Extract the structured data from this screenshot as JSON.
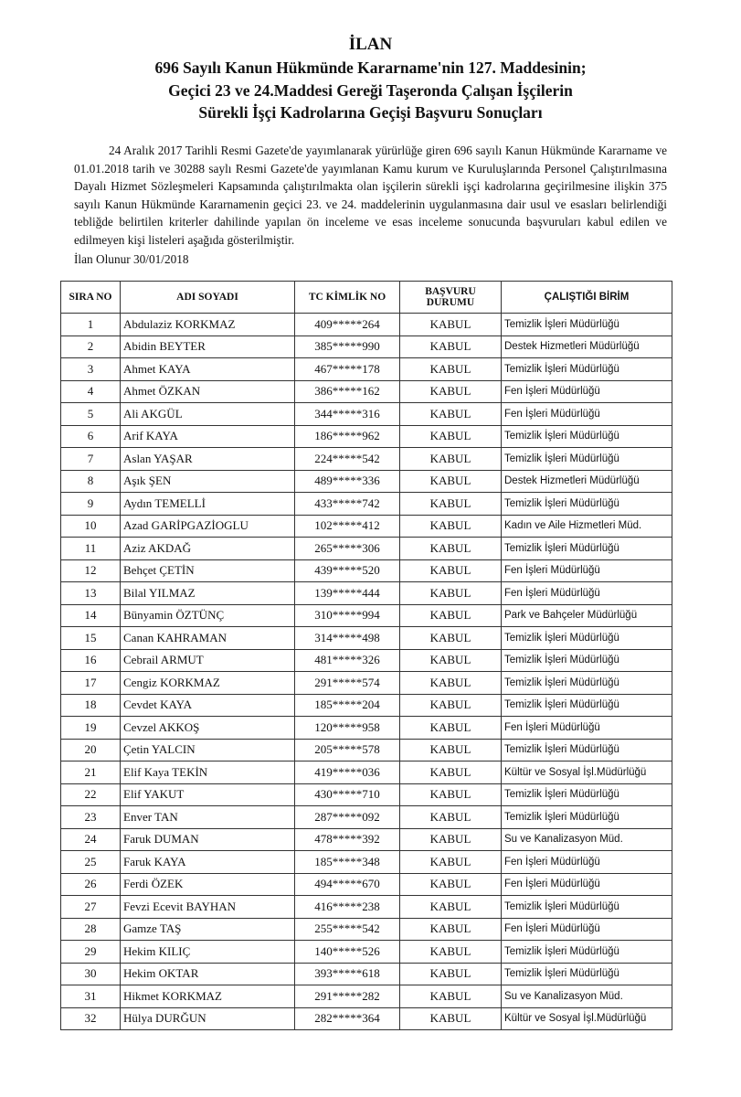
{
  "title": {
    "line1": "İLAN",
    "line2": "696 Sayılı Kanun Hükmünde Kararname'nin 127. Maddesinin;",
    "line3": "Geçici 23 ve 24.Maddesi Gereği Taşeronda Çalışan İşçilerin",
    "line4": "Sürekli İşçi Kadrolarına Geçişi Başvuru Sonuçları"
  },
  "body": "24 Aralık 2017 Tarihli Resmi Gazete'de yayımlanarak yürürlüğe giren 696 sayılı Kanun Hükmünde Kararname ve 01.01.2018 tarih ve 30288 saylı Resmi Gazete'de yayımlanan Kamu kurum ve Kuruluşlarında Personel Çalıştırılmasına Dayalı Hizmet Sözleşmeleri Kapsamında çalıştırılmakta olan işçilerin sürekli işçi kadrolarına geçirilmesine ilişkin 375 sayılı Kanun Hükmünde Kararnamenin geçici 23. ve 24. maddelerinin uygulanmasına dair usul ve esasları belirlendiği tebliğde belirtilen kriterler dahilinde yapılan ön inceleme ve esas inceleme sonucunda başvuruları kabul edilen ve edilmeyen kişi listeleri aşağıda gösterilmiştir.",
  "ilan_date": "İlan Olunur 30/01/2018",
  "table": {
    "headers": [
      "SIRA NO",
      "ADI SOYADI",
      "TC KİMLİK NO",
      "BAŞVURU DURUMU",
      "ÇALIŞTIĞI BİRİM"
    ],
    "rows": [
      [
        "1",
        "Abdulaziz KORKMAZ",
        "409*****264",
        "KABUL",
        "Temizlik İşleri Müdürlüğü"
      ],
      [
        "2",
        "Abidin BEYTER",
        "385*****990",
        "KABUL",
        "Destek Hizmetleri Müdürlüğü"
      ],
      [
        "3",
        "Ahmet KAYA",
        "467*****178",
        "KABUL",
        "Temizlik İşleri Müdürlüğü"
      ],
      [
        "4",
        "Ahmet ÖZKAN",
        "386*****162",
        "KABUL",
        "Fen İşleri Müdürlüğü"
      ],
      [
        "5",
        "Ali AKGÜL",
        "344*****316",
        "KABUL",
        "Fen İşleri Müdürlüğü"
      ],
      [
        "6",
        "Arif KAYA",
        "186*****962",
        "KABUL",
        "Temizlik İşleri Müdürlüğü"
      ],
      [
        "7",
        "Aslan YAŞAR",
        "224*****542",
        "KABUL",
        "Temizlik İşleri Müdürlüğü"
      ],
      [
        "8",
        "Aşık ŞEN",
        "489*****336",
        "KABUL",
        "Destek Hizmetleri Müdürlüğü"
      ],
      [
        "9",
        "Aydın TEMELLİ",
        "433*****742",
        "KABUL",
        "Temizlik İşleri Müdürlüğü"
      ],
      [
        "10",
        "Azad GARİPGAZİOGLU",
        "102*****412",
        "KABUL",
        "Kadın ve Aile Hizmetleri Müd."
      ],
      [
        "11",
        "Aziz AKDAĞ",
        "265*****306",
        "KABUL",
        "Temizlik İşleri Müdürlüğü"
      ],
      [
        "12",
        "Behçet ÇETİN",
        "439*****520",
        "KABUL",
        "Fen İşleri Müdürlüğü"
      ],
      [
        "13",
        "Bilal YILMAZ",
        "139*****444",
        "KABUL",
        "Fen İşleri Müdürlüğü"
      ],
      [
        "14",
        "Bünyamin ÖZTÜNÇ",
        "310*****994",
        "KABUL",
        "Park ve Bahçeler Müdürlüğü"
      ],
      [
        "15",
        "Canan KAHRAMAN",
        "314*****498",
        "KABUL",
        "Temizlik İşleri Müdürlüğü"
      ],
      [
        "16",
        "Cebrail ARMUT",
        "481*****326",
        "KABUL",
        "Temizlik İşleri Müdürlüğü"
      ],
      [
        "17",
        "Cengiz KORKMAZ",
        "291*****574",
        "KABUL",
        "Temizlik İşleri Müdürlüğü"
      ],
      [
        "18",
        "Cevdet KAYA",
        "185*****204",
        "KABUL",
        "Temizlik İşleri Müdürlüğü"
      ],
      [
        "19",
        "Cevzel AKKOŞ",
        "120*****958",
        "KABUL",
        "Fen İşleri Müdürlüğü"
      ],
      [
        "20",
        "Çetin YALCIN",
        "205*****578",
        "KABUL",
        "Temizlik İşleri Müdürlüğü"
      ],
      [
        "21",
        "Elif Kaya TEKİN",
        "419*****036",
        "KABUL",
        "Kültür ve Sosyal İşl.Müdürlüğü"
      ],
      [
        "22",
        "Elif YAKUT",
        "430*****710",
        "KABUL",
        "Temizlik İşleri Müdürlüğü"
      ],
      [
        "23",
        "Enver TAN",
        "287*****092",
        "KABUL",
        "Temizlik İşleri Müdürlüğü"
      ],
      [
        "24",
        "Faruk DUMAN",
        "478*****392",
        "KABUL",
        "Su ve Kanalizasyon Müd."
      ],
      [
        "25",
        "Faruk KAYA",
        "185*****348",
        "KABUL",
        "Fen İşleri Müdürlüğü"
      ],
      [
        "26",
        "Ferdi ÖZEK",
        "494*****670",
        "KABUL",
        "Fen İşleri Müdürlüğü"
      ],
      [
        "27",
        "Fevzi Ecevit BAYHAN",
        "416*****238",
        "KABUL",
        "Temizlik İşleri Müdürlüğü"
      ],
      [
        "28",
        "Gamze TAŞ",
        "255*****542",
        "KABUL",
        "Fen İşleri Müdürlüğü"
      ],
      [
        "29",
        "Hekim KILIÇ",
        "140*****526",
        "KABUL",
        "Temizlik İşleri Müdürlüğü"
      ],
      [
        "30",
        "Hekim OKTAR",
        "393*****618",
        "KABUL",
        "Temizlik İşleri Müdürlüğü"
      ],
      [
        "31",
        "Hikmet KORKMAZ",
        "291*****282",
        "KABUL",
        "Su ve Kanalizasyon Müd."
      ],
      [
        "32",
        "Hülya DURĞUN",
        "282*****364",
        "KABUL",
        "Kültür ve Sosyal İşl.Müdürlüğü"
      ]
    ]
  }
}
